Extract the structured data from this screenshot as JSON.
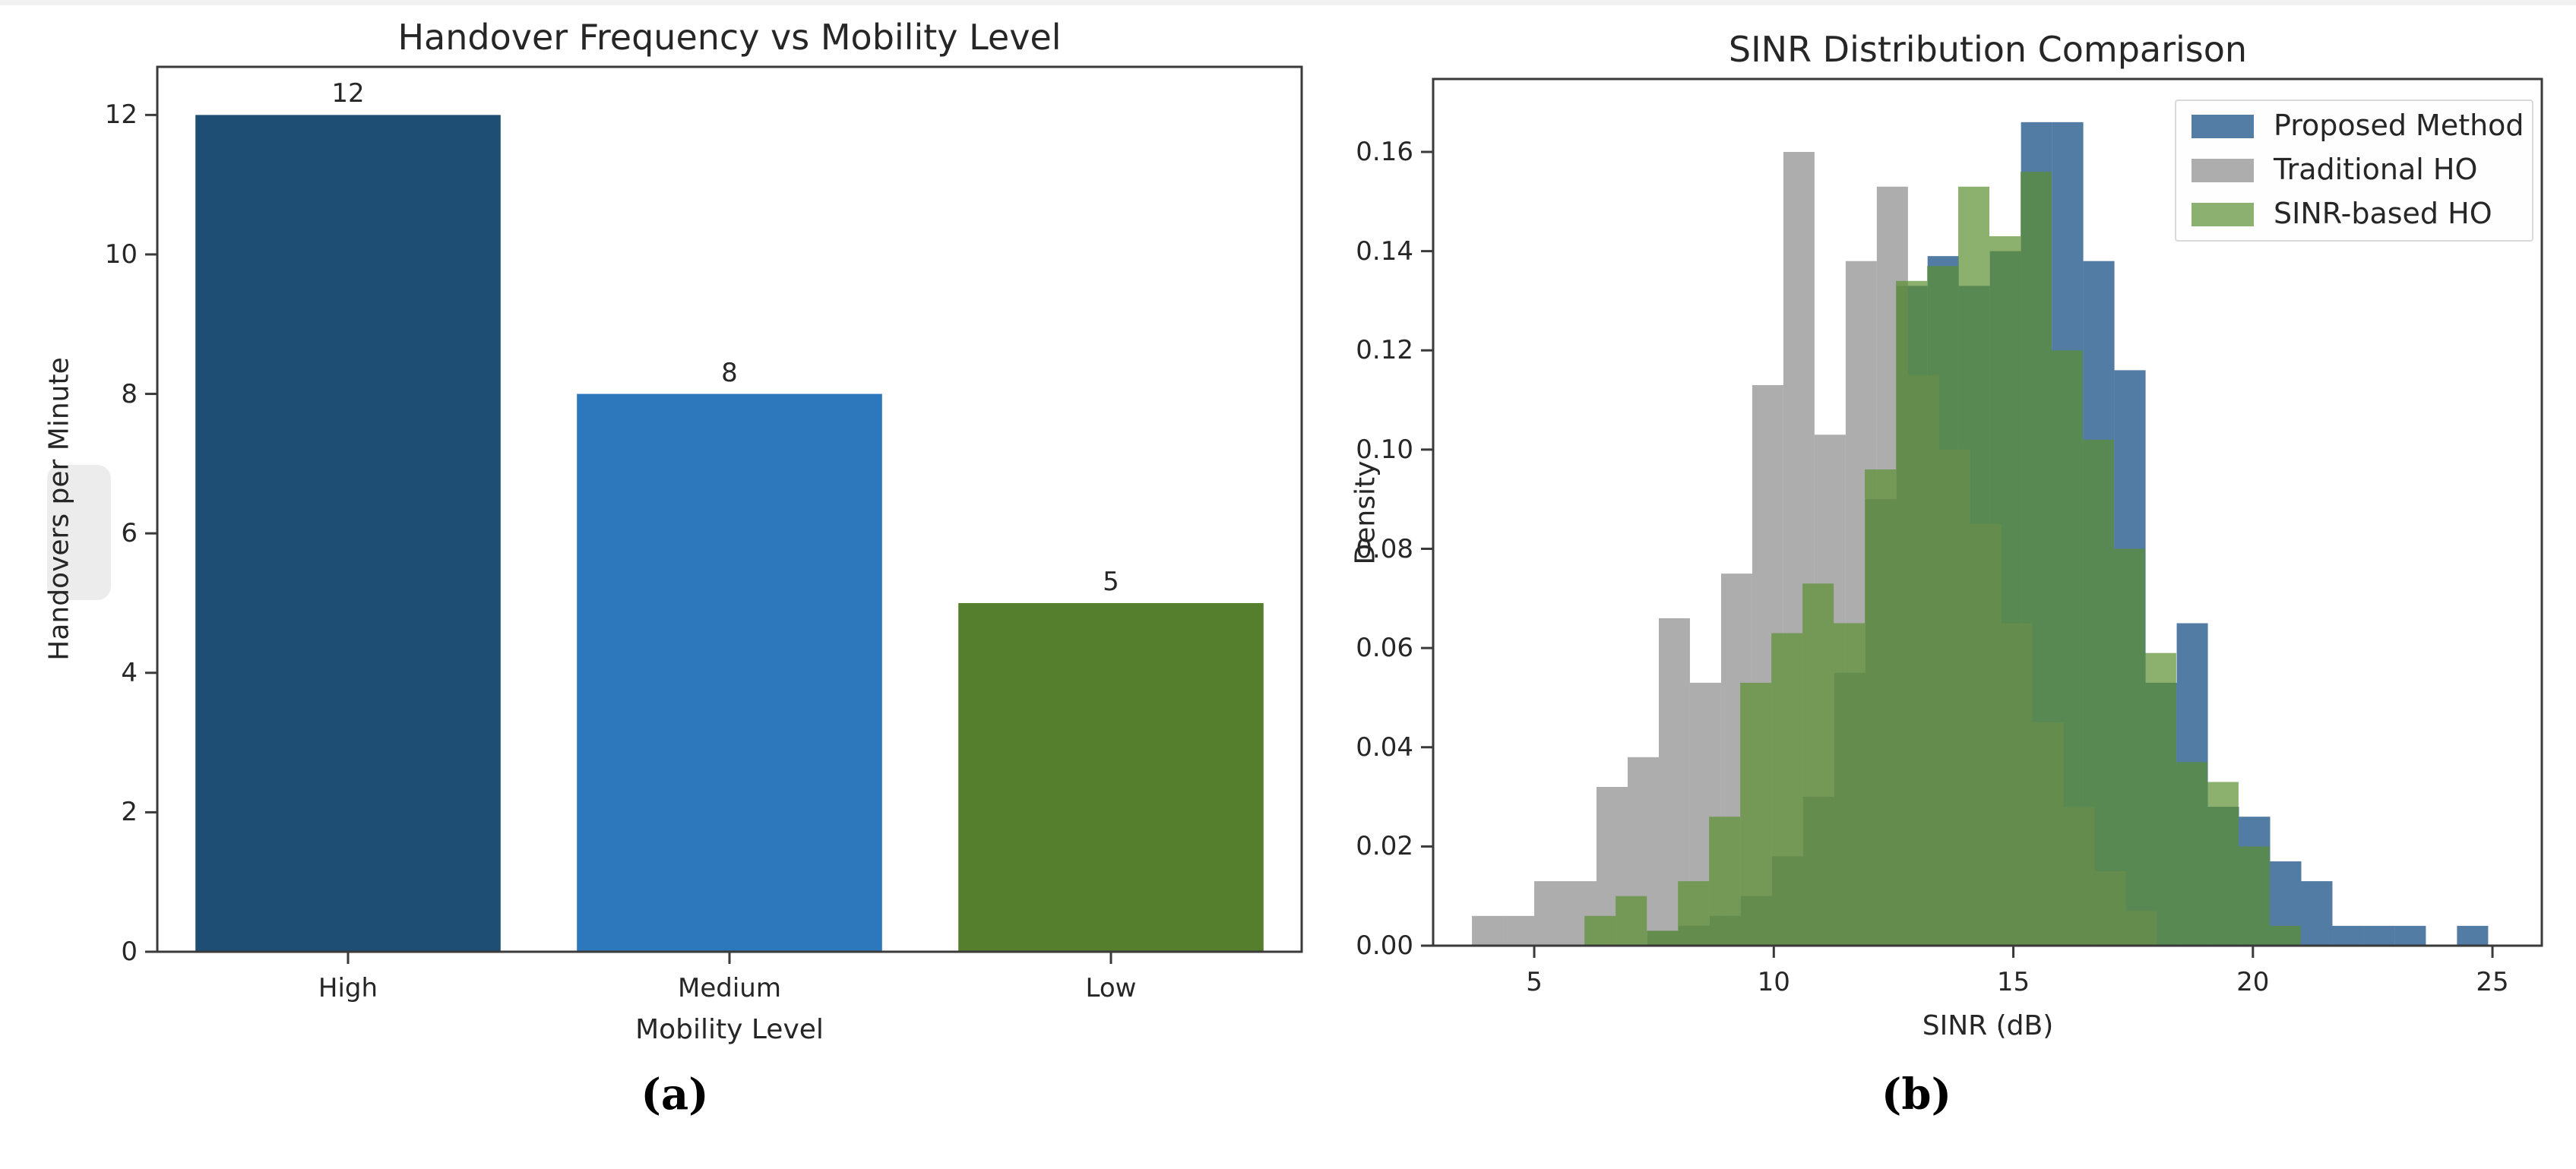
{
  "page": {
    "background": "#ffffff",
    "artifacts": {
      "top_strip_color": "#f1f1f1",
      "left_blob_color": "#ececec"
    }
  },
  "panel_a": {
    "caption": "(a)"
  },
  "panel_b": {
    "caption": "(b)"
  },
  "chart_data": [
    {
      "type": "bar",
      "title": "Handover Frequency vs Mobility Level",
      "xlabel": "Mobility Level",
      "ylabel": "Handovers per Minute",
      "categories": [
        "High",
        "Medium",
        "Low"
      ],
      "values": [
        12,
        8,
        5
      ],
      "bar_labels": [
        "12",
        "8",
        "5"
      ],
      "bar_colors": [
        "#1F4E74",
        "#2D77BC",
        "#557F2D"
      ],
      "yticks": [
        0,
        2,
        4,
        6,
        8,
        10,
        12
      ],
      "ytick_labels": [
        "0",
        "2",
        "4",
        "6",
        "8",
        "10",
        "12"
      ],
      "ylim": [
        0,
        12.69
      ],
      "grid": false,
      "spine_color": "#3a3a3a"
    },
    {
      "type": "histogram",
      "title": "SINR Distribution Comparison",
      "xlabel": "SINR (dB)",
      "ylabel": "Density",
      "xticks": [
        5,
        10,
        15,
        20,
        25
      ],
      "xtick_labels": [
        "5",
        "10",
        "15",
        "20",
        "25"
      ],
      "yticks": [
        0.0,
        0.02,
        0.04,
        0.06,
        0.08,
        0.1,
        0.12,
        0.14,
        0.16
      ],
      "ytick_labels": [
        "0.00",
        "0.02",
        "0.04",
        "0.06",
        "0.08",
        "0.10",
        "0.12",
        "0.14",
        "0.16"
      ],
      "xlim": [
        2.89,
        26.03
      ],
      "ylim": [
        0,
        0.1747
      ],
      "bin_width": 0.65,
      "alpha": 0.7,
      "grid": false,
      "spine_color": "#3a3a3a",
      "legend": {
        "position": "upper right",
        "entries": [
          "Proposed Method",
          "Traditional HO",
          "SINR-based HO"
        ]
      },
      "series": [
        {
          "name": "Proposed Method",
          "color": "rgb(9,69,125)",
          "legend_swatch": "#537DA4",
          "bin_start": 7.36,
          "heights": [
            0.003,
            0.004,
            0.006,
            0.01,
            0.018,
            0.03,
            0.055,
            0.09,
            0.133,
            0.139,
            0.133,
            0.14,
            0.166,
            0.166,
            0.138,
            0.116,
            0.053,
            0.065,
            0.028,
            0.026,
            0.017,
            0.013,
            0.004,
            0.004,
            0.004,
            0,
            0.004
          ]
        },
        {
          "name": "Traditional HO",
          "color": "rgb(138,138,138)",
          "legend_swatch": "#ADADAD",
          "bin_start": 3.7,
          "heights": [
            0.006,
            0.006,
            0.013,
            0.013,
            0.032,
            0.038,
            0.066,
            0.053,
            0.075,
            0.113,
            0.16,
            0.103,
            0.138,
            0.153,
            0.115,
            0.1,
            0.085,
            0.065,
            0.045,
            0.028,
            0.015,
            0.007
          ]
        },
        {
          "name": "SINR-based HO",
          "color": "rgb(91,142,49)",
          "legend_swatch": "#8CB06F",
          "bin_start": 6.05,
          "heights": [
            0.006,
            0.01,
            0.003,
            0.013,
            0.026,
            0.053,
            0.063,
            0.073,
            0.065,
            0.096,
            0.134,
            0.137,
            0.153,
            0.143,
            0.156,
            0.12,
            0.102,
            0.08,
            0.059,
            0.037,
            0.033,
            0.02,
            0.004
          ]
        }
      ],
      "draw_order": [
        "Proposed Method",
        "Traditional HO",
        "SINR-based HO"
      ]
    }
  ]
}
